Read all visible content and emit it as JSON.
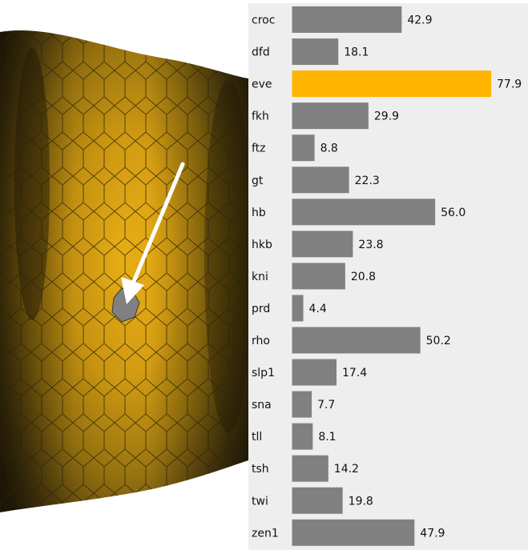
{
  "colors": {
    "bar": "#808080",
    "highlight": "#ffb400",
    "panel_bg": "#eeeeee",
    "selected_cell": "#808080",
    "cell_light": "#e8ab12",
    "cell_dark": "#4a3a12",
    "arrow": "#ffffff"
  },
  "visualization": {
    "selected_cell_icon": "gray-cell-marker",
    "pointer_icon": "white-arrow"
  },
  "chart_data": {
    "type": "bar",
    "orientation": "horizontal",
    "highlighted": "eve",
    "xlim": [
      0,
      80
    ],
    "categories": [
      "croc",
      "dfd",
      "eve",
      "fkh",
      "ftz",
      "gt",
      "hb",
      "hkb",
      "kni",
      "prd",
      "rho",
      "slp1",
      "sna",
      "tll",
      "tsh",
      "twi",
      "zen1"
    ],
    "values": [
      42.9,
      18.1,
      77.9,
      29.9,
      8.8,
      22.3,
      56.0,
      23.8,
      20.8,
      4.4,
      50.2,
      17.4,
      7.7,
      8.1,
      14.2,
      19.8,
      47.9
    ],
    "labels": [
      "42.9",
      "18.1",
      "77.9",
      "29.9",
      "8.8",
      "22.3",
      "56.0",
      "23.8",
      "20.8",
      "4.4",
      "50.2",
      "17.4",
      "7.7",
      "8.1",
      "14.2",
      "19.8",
      "47.9"
    ]
  }
}
